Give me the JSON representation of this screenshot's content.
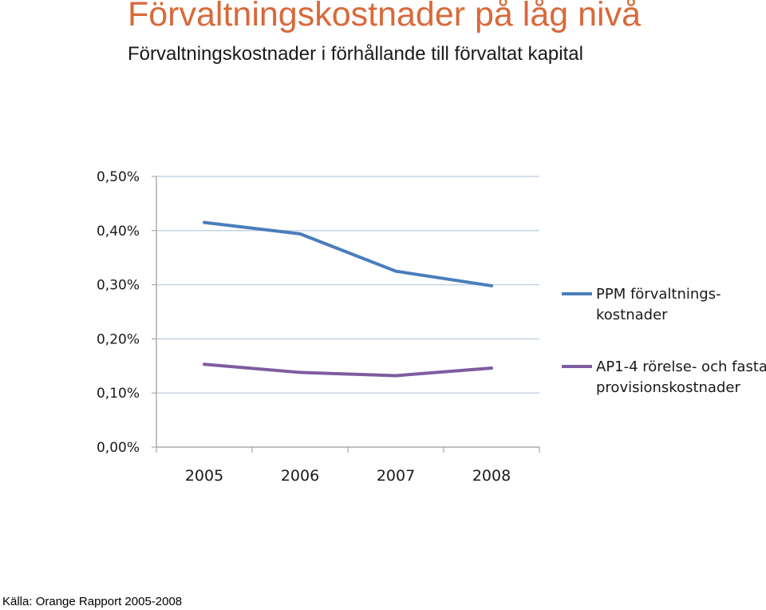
{
  "title": "Förvaltningskostnader på låg nivå",
  "subtitle": "Förvaltningskostnader i förhållande till förvaltat kapital",
  "source": "Källa: Orange Rapport 2005-2008",
  "colors": {
    "title": "#d9693a",
    "ppm": "#4a7ebb",
    "ap": "#7e5ca0",
    "grid": "#c6d4e6",
    "axis": "#9a9a9a"
  },
  "chart_data": {
    "type": "line",
    "categories": [
      "2005",
      "2006",
      "2007",
      "2008"
    ],
    "ylim": [
      0,
      0.5
    ],
    "yticks": [
      0.0,
      0.1,
      0.2,
      0.3,
      0.4,
      0.5
    ],
    "ytick_labels": [
      "0,00%",
      "0,10%",
      "0,20%",
      "0,30%",
      "0,40%",
      "0,50%"
    ],
    "grid": true,
    "legend_position": "right",
    "series": [
      {
        "name_lines": [
          "PPM förvaltnings-",
          "kostnader"
        ],
        "values": [
          0.415,
          0.394,
          0.325,
          0.298
        ],
        "color": "#4a7ebb"
      },
      {
        "name_lines": [
          "AP1-4 rörelse- och fasta",
          "provisionskostnader"
        ],
        "values": [
          0.153,
          0.138,
          0.132,
          0.146
        ],
        "color": "#7e5ca0"
      }
    ]
  }
}
